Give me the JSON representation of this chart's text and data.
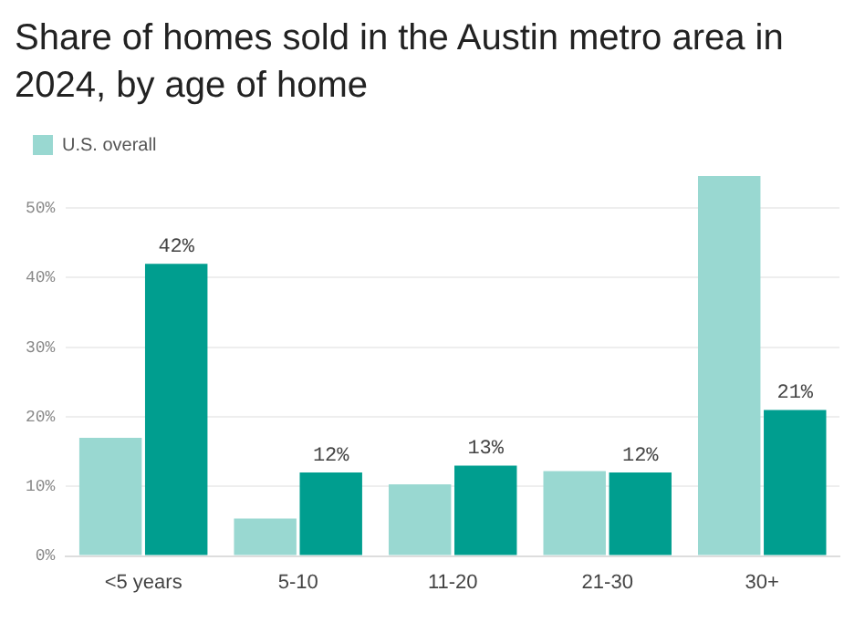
{
  "chart_data": {
    "type": "bar",
    "title": "Share of homes sold in the Austin metro area in 2024, by age of home",
    "categories": [
      "<5 years",
      "5-10",
      "11-20",
      "21-30",
      "30+"
    ],
    "series": [
      {
        "name": "U.S. overall",
        "color": "#99d8d1",
        "values": [
          17.0,
          5.4,
          10.3,
          12.2,
          54.6
        ]
      },
      {
        "color": "#009e8f",
        "values": [
          42,
          12,
          13,
          12,
          21
        ],
        "value_labels": [
          "42%",
          "12%",
          "13%",
          "12%",
          "21%"
        ]
      }
    ],
    "ylim": [
      0,
      55
    ],
    "yticks": [
      {
        "value": 0,
        "label": "0%"
      },
      {
        "value": 10,
        "label": "10%"
      },
      {
        "value": 20,
        "label": "20%"
      },
      {
        "value": 30,
        "label": "30%"
      },
      {
        "value": 40,
        "label": "40%"
      },
      {
        "value": 50,
        "label": "50%"
      }
    ],
    "grid": "y",
    "legend": "top left"
  }
}
